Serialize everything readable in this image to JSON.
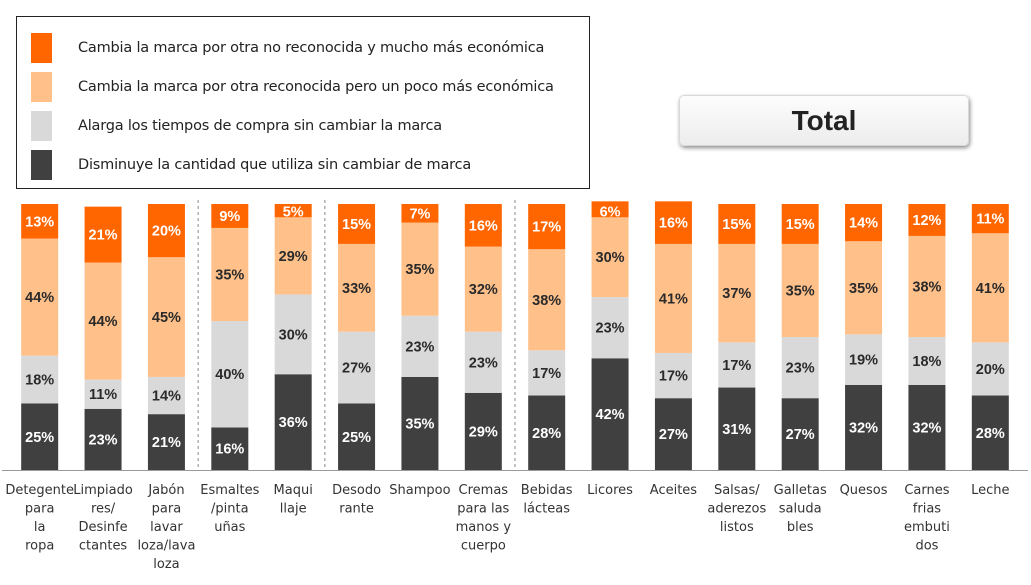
{
  "title_badge": "Total",
  "colors": {
    "no_reconocida": "#ff6600",
    "reconocida": "#ffc08a",
    "alarga": "#d9d9d9",
    "disminuye": "#404040"
  },
  "chart_data": {
    "type": "bar",
    "stacked": true,
    "ylim": [
      0,
      100
    ],
    "categories": [
      "Detegente para la ropa",
      "Limpiadores/ Desinfectantes",
      "Jabón para lavar loza/lava loza",
      "Esmaltes /pinta uñas",
      "Maquillaje",
      "Desodorante",
      "Shampoo",
      "Cremas para las manos y cuerpo",
      "Bebidas lácteas",
      "Licores",
      "Aceites",
      "Salsas/ aderezos listos",
      "Galletas saludables",
      "Quesos",
      "Carnes frias embutidos",
      "Leche"
    ],
    "category_lines": [
      [
        "Detegente",
        "para",
        "la",
        "ropa"
      ],
      [
        "Limpiado",
        "res/",
        "Desinfe",
        "ctantes"
      ],
      [
        "Jabón",
        "para",
        "lavar",
        "loza/lava",
        "loza"
      ],
      [
        "Esmaltes",
        "/pinta",
        "uñas"
      ],
      [
        "Maqui",
        "llaje"
      ],
      [
        "Desodo",
        "rante"
      ],
      [
        "Shampoo"
      ],
      [
        "Cremas",
        "para las",
        "manos y",
        "cuerpo"
      ],
      [
        "Bebidas",
        "lácteas"
      ],
      [
        "Licores"
      ],
      [
        "Aceites"
      ],
      [
        "Salsas/",
        "aderezos",
        "listos"
      ],
      [
        "Galletas",
        "saluda",
        "bles"
      ],
      [
        "Quesos"
      ],
      [
        "Carnes",
        "frias",
        "embuti",
        "dos"
      ],
      [
        "Leche"
      ]
    ],
    "series": [
      {
        "name": "Disminuye la cantidad que utiliza sin cambiar de marca",
        "color_key": "disminuye",
        "values": [
          25,
          23,
          21,
          16,
          36,
          25,
          35,
          29,
          28,
          42,
          27,
          31,
          27,
          32,
          32,
          28
        ]
      },
      {
        "name": "Alarga los tiempos de compra sin cambiar la marca",
        "color_key": "alarga",
        "values": [
          18,
          11,
          14,
          40,
          30,
          27,
          23,
          23,
          17,
          23,
          17,
          17,
          23,
          19,
          18,
          20
        ]
      },
      {
        "name": "Cambia la marca por otra reconocida pero un poco más económica",
        "color_key": "reconocida",
        "values": [
          44,
          44,
          45,
          35,
          29,
          33,
          35,
          32,
          38,
          30,
          41,
          37,
          35,
          35,
          38,
          41
        ]
      },
      {
        "name": "Cambia la marca por otra no reconocida y mucho más económica",
        "color_key": "no_reconocida",
        "values": [
          13,
          21,
          20,
          9,
          5,
          15,
          7,
          16,
          17,
          6,
          16,
          15,
          15,
          14,
          12,
          11
        ]
      }
    ],
    "legend_order": [
      3,
      2,
      1,
      0
    ],
    "group_separators_after": [
      2,
      4,
      7
    ]
  }
}
